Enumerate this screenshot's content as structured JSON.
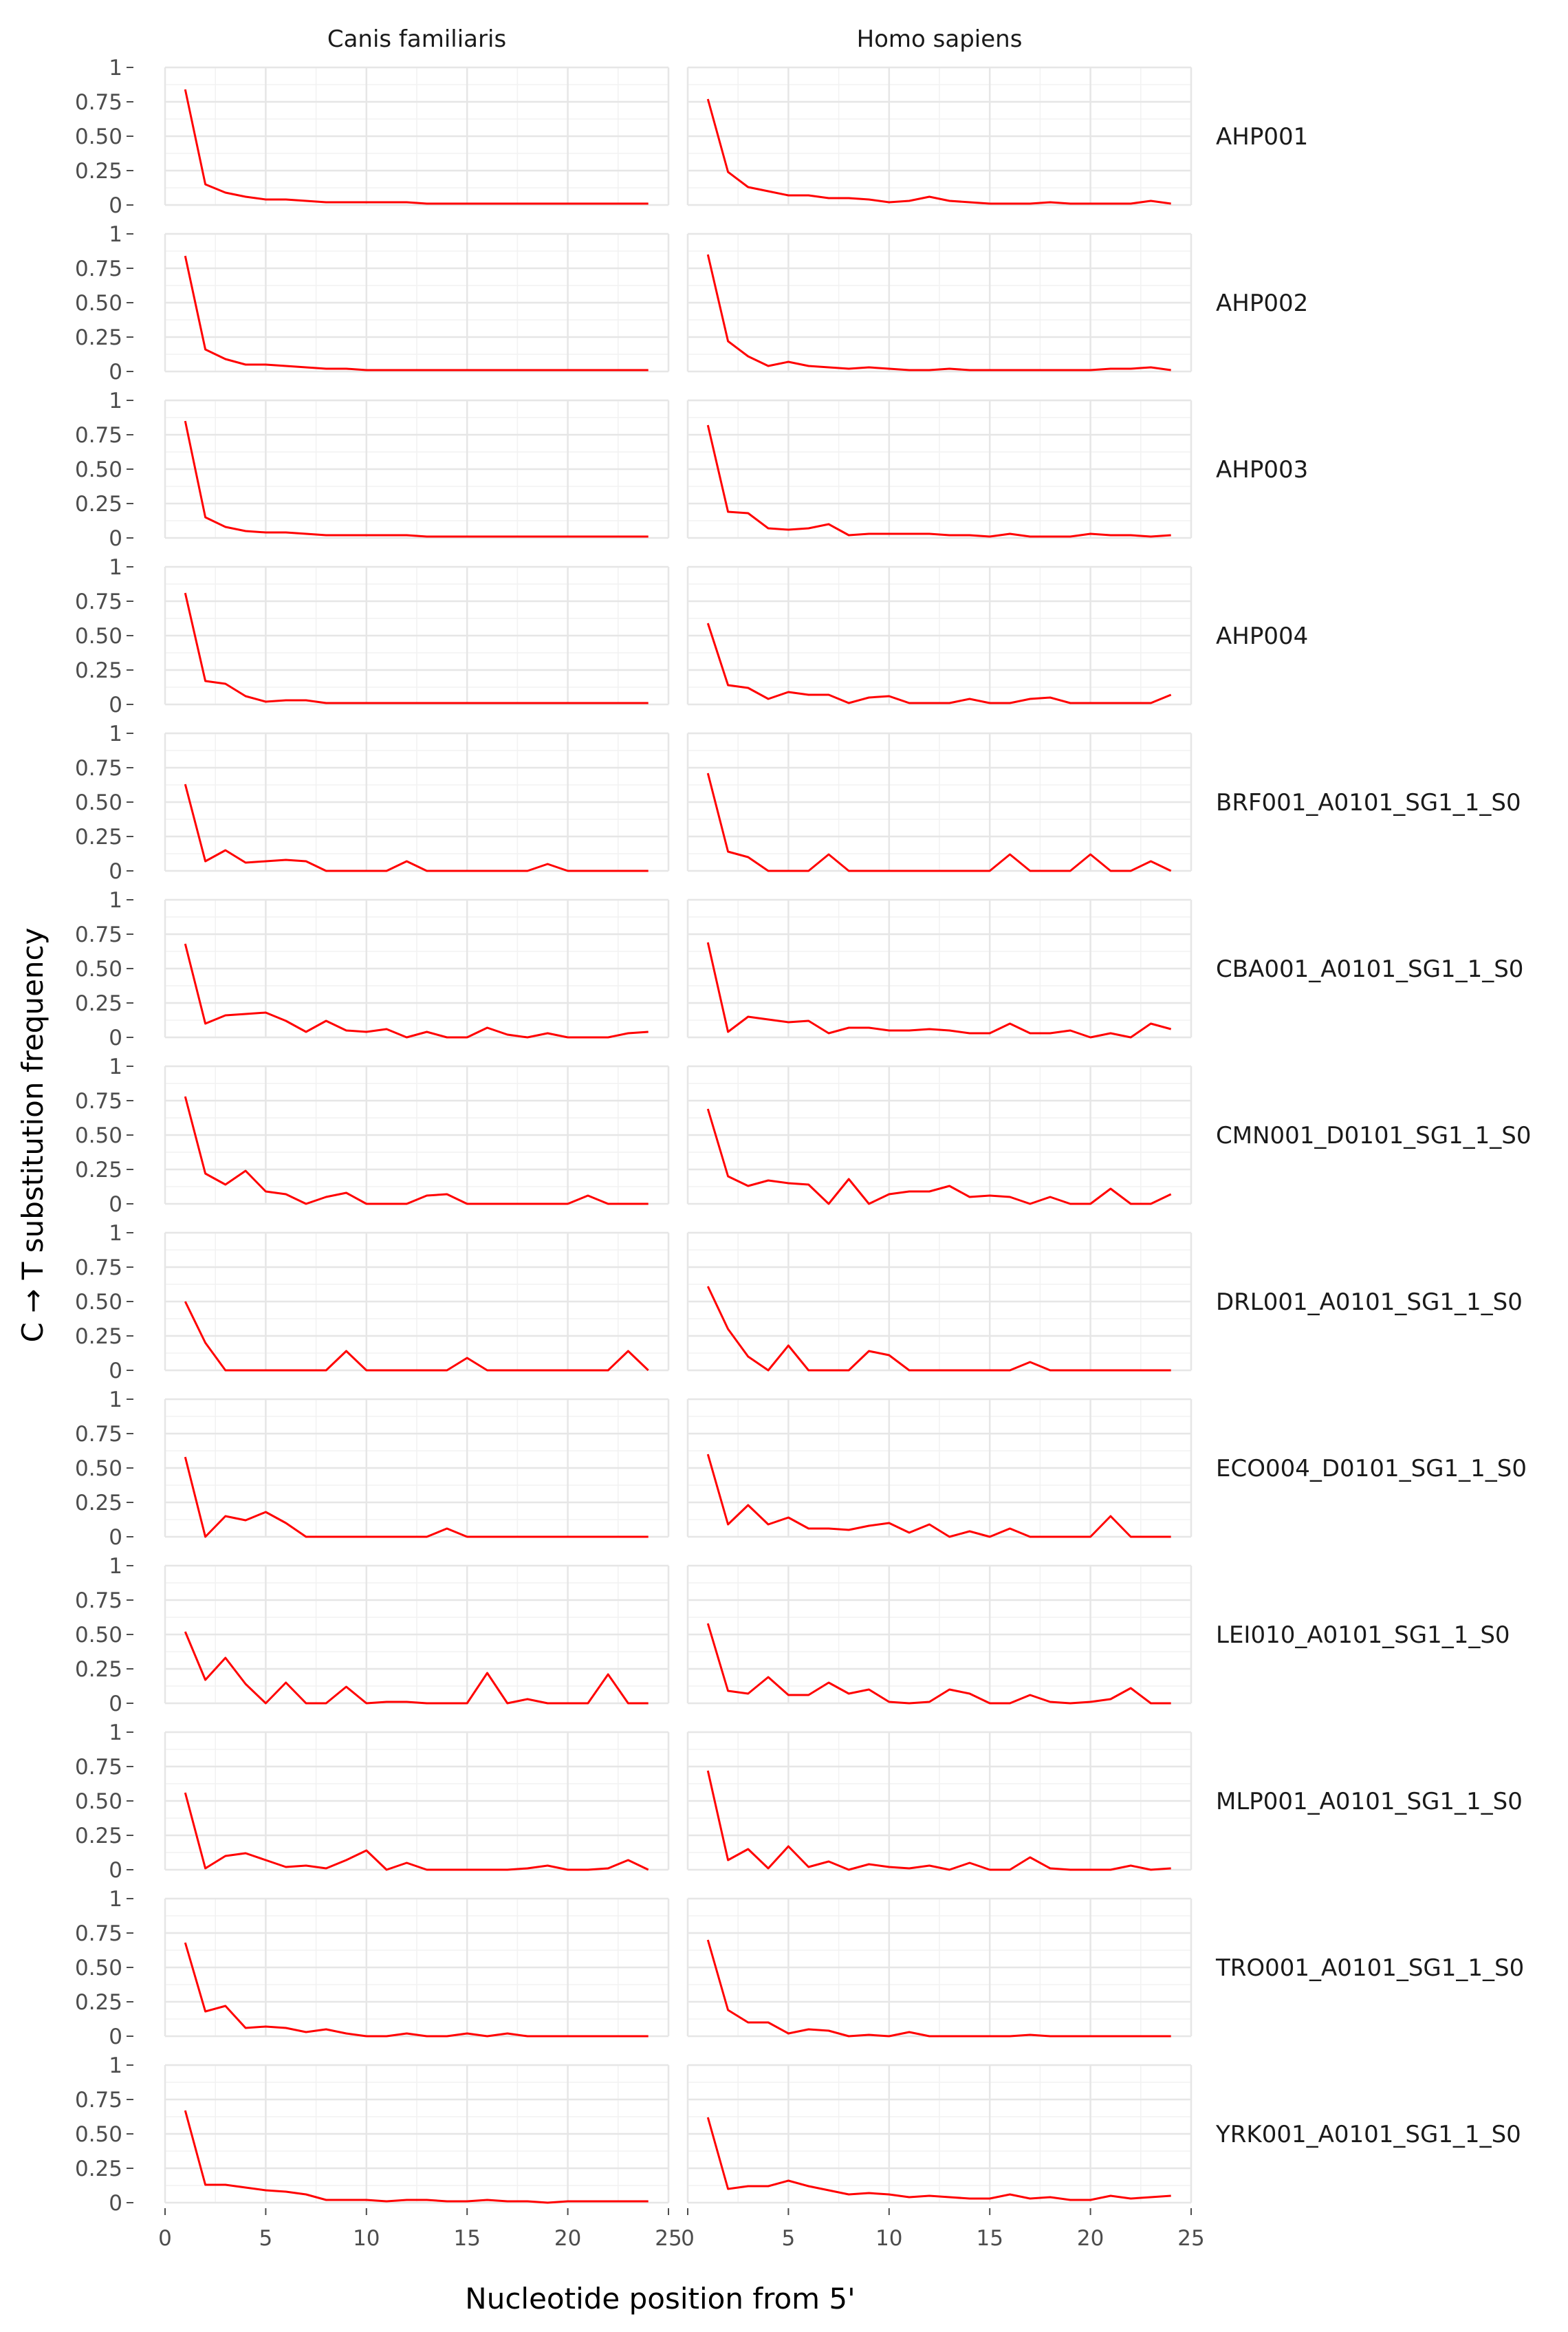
{
  "chart_data": {
    "type": "line",
    "xlabel": "Nucleotide position from 5'",
    "ylabel": "C → T substitution frequency",
    "xlim": [
      0,
      25
    ],
    "ylim": [
      0,
      1
    ],
    "x_ticks": [
      0,
      5,
      10,
      15,
      20,
      25
    ],
    "x_tick_labels": [
      "0",
      "5",
      "10",
      "15",
      "20",
      "25"
    ],
    "y_ticks": [
      0,
      0.25,
      0.5,
      0.75,
      1
    ],
    "y_tick_labels": [
      "0",
      "0.25",
      "0.50",
      "0.75",
      "1"
    ],
    "grid": true,
    "line_color": "#ff0000",
    "grid_color": "#e6e6e6",
    "x": [
      1,
      2,
      3,
      4,
      5,
      6,
      7,
      8,
      9,
      10,
      11,
      12,
      13,
      14,
      15,
      16,
      17,
      18,
      19,
      20,
      21,
      22,
      23,
      24
    ],
    "columns": [
      "Canis familiaris",
      "Homo sapiens"
    ],
    "rows": [
      "AHP001",
      "AHP002",
      "AHP003",
      "AHP004",
      "BRF001_A0101_SG1_1_S0",
      "CBA001_A0101_SG1_1_S0",
      "CMN001_D0101_SG1_1_S0",
      "DRL001_A0101_SG1_1_S0",
      "ECO004_D0101_SG1_1_S0",
      "LEI010_A0101_SG1_1_S0",
      "MLP001_A0101_SG1_1_S0",
      "TRO001_A0101_SG1_1_S0",
      "YRK001_A0101_SG1_1_S0"
    ],
    "panels": [
      {
        "row": "AHP001",
        "column": "Canis familiaris",
        "values": [
          0.84,
          0.15,
          0.09,
          0.06,
          0.04,
          0.04,
          0.03,
          0.02,
          0.02,
          0.02,
          0.02,
          0.02,
          0.01,
          0.01,
          0.01,
          0.01,
          0.01,
          0.01,
          0.01,
          0.01,
          0.01,
          0.01,
          0.01,
          0.01
        ]
      },
      {
        "row": "AHP001",
        "column": "Homo sapiens",
        "values": [
          0.77,
          0.24,
          0.13,
          0.1,
          0.07,
          0.07,
          0.05,
          0.05,
          0.04,
          0.02,
          0.03,
          0.06,
          0.03,
          0.02,
          0.01,
          0.01,
          0.01,
          0.02,
          0.01,
          0.01,
          0.01,
          0.01,
          0.03,
          0.01
        ]
      },
      {
        "row": "AHP002",
        "column": "Canis familiaris",
        "values": [
          0.84,
          0.16,
          0.09,
          0.05,
          0.05,
          0.04,
          0.03,
          0.02,
          0.02,
          0.01,
          0.01,
          0.01,
          0.01,
          0.01,
          0.01,
          0.01,
          0.01,
          0.01,
          0.01,
          0.01,
          0.01,
          0.01,
          0.01,
          0.01
        ]
      },
      {
        "row": "AHP002",
        "column": "Homo sapiens",
        "values": [
          0.85,
          0.22,
          0.11,
          0.04,
          0.07,
          0.04,
          0.03,
          0.02,
          0.03,
          0.02,
          0.01,
          0.01,
          0.02,
          0.01,
          0.01,
          0.01,
          0.01,
          0.01,
          0.01,
          0.01,
          0.02,
          0.02,
          0.03,
          0.01
        ]
      },
      {
        "row": "AHP003",
        "column": "Canis familiaris",
        "values": [
          0.85,
          0.15,
          0.08,
          0.05,
          0.04,
          0.04,
          0.03,
          0.02,
          0.02,
          0.02,
          0.02,
          0.02,
          0.01,
          0.01,
          0.01,
          0.01,
          0.01,
          0.01,
          0.01,
          0.01,
          0.01,
          0.01,
          0.01,
          0.01
        ]
      },
      {
        "row": "AHP003",
        "column": "Homo sapiens",
        "values": [
          0.82,
          0.19,
          0.18,
          0.07,
          0.06,
          0.07,
          0.1,
          0.02,
          0.03,
          0.03,
          0.03,
          0.03,
          0.02,
          0.02,
          0.01,
          0.03,
          0.01,
          0.01,
          0.01,
          0.03,
          0.02,
          0.02,
          0.01,
          0.02
        ]
      },
      {
        "row": "AHP004",
        "column": "Canis familiaris",
        "values": [
          0.81,
          0.17,
          0.15,
          0.06,
          0.02,
          0.03,
          0.03,
          0.01,
          0.01,
          0.01,
          0.01,
          0.01,
          0.01,
          0.01,
          0.01,
          0.01,
          0.01,
          0.01,
          0.01,
          0.01,
          0.01,
          0.01,
          0.01,
          0.01
        ]
      },
      {
        "row": "AHP004",
        "column": "Homo sapiens",
        "values": [
          0.59,
          0.14,
          0.12,
          0.04,
          0.09,
          0.07,
          0.07,
          0.01,
          0.05,
          0.06,
          0.01,
          0.01,
          0.01,
          0.04,
          0.01,
          0.01,
          0.04,
          0.05,
          0.01,
          0.01,
          0.01,
          0.01,
          0.01,
          0.07
        ]
      },
      {
        "row": "BRF001_A0101_SG1_1_S0",
        "column": "Canis familiaris",
        "values": [
          0.63,
          0.07,
          0.15,
          0.06,
          0.07,
          0.08,
          0.07,
          0,
          0,
          0,
          0,
          0.07,
          0,
          0,
          0,
          0,
          0,
          0,
          0.05,
          0,
          0,
          0,
          0,
          0
        ]
      },
      {
        "row": "BRF001_A0101_SG1_1_S0",
        "column": "Homo sapiens",
        "values": [
          0.71,
          0.14,
          0.1,
          0,
          0,
          0,
          0.12,
          0,
          0,
          0,
          0,
          0,
          0,
          0,
          0,
          0.12,
          0,
          0,
          0,
          0.12,
          0,
          0,
          0.07,
          0
        ]
      },
      {
        "row": "CBA001_A0101_SG1_1_S0",
        "column": "Canis familiaris",
        "values": [
          0.68,
          0.1,
          0.16,
          0.17,
          0.18,
          0.12,
          0.04,
          0.12,
          0.05,
          0.04,
          0.06,
          0,
          0.04,
          0,
          0,
          0.07,
          0.02,
          0,
          0.03,
          0,
          0,
          0,
          0.03,
          0.04
        ]
      },
      {
        "row": "CBA001_A0101_SG1_1_S0",
        "column": "Homo sapiens",
        "values": [
          0.69,
          0.04,
          0.15,
          0.13,
          0.11,
          0.12,
          0.03,
          0.07,
          0.07,
          0.05,
          0.05,
          0.06,
          0.05,
          0.03,
          0.03,
          0.1,
          0.03,
          0.03,
          0.05,
          0,
          0.03,
          0,
          0.1,
          0.06
        ]
      },
      {
        "row": "CMN001_D0101_SG1_1_S0",
        "column": "Canis familiaris",
        "values": [
          0.78,
          0.22,
          0.14,
          0.24,
          0.09,
          0.07,
          0,
          0.05,
          0.08,
          0,
          0,
          0,
          0.06,
          0.07,
          0,
          0,
          0,
          0,
          0,
          0,
          0.06,
          0,
          0,
          0
        ]
      },
      {
        "row": "CMN001_D0101_SG1_1_S0",
        "column": "Homo sapiens",
        "values": [
          0.69,
          0.2,
          0.13,
          0.17,
          0.15,
          0.14,
          0,
          0.18,
          0,
          0.07,
          0.09,
          0.09,
          0.13,
          0.05,
          0.06,
          0.05,
          0,
          0.05,
          0,
          0,
          0.11,
          0,
          0,
          0.07
        ]
      },
      {
        "row": "DRL001_A0101_SG1_1_S0",
        "column": "Canis familiaris",
        "values": [
          0.5,
          0.2,
          0,
          0,
          0,
          0,
          0,
          0,
          0.14,
          0,
          0,
          0,
          0,
          0,
          0.09,
          0,
          0,
          0,
          0,
          0,
          0,
          0,
          0.14,
          0
        ]
      },
      {
        "row": "DRL001_A0101_SG1_1_S0",
        "column": "Homo sapiens",
        "values": [
          0.61,
          0.3,
          0.1,
          0,
          0.18,
          0,
          0,
          0,
          0.14,
          0.11,
          0,
          0,
          0,
          0,
          0,
          0,
          0.06,
          0,
          0,
          0,
          0,
          0,
          0,
          0
        ]
      },
      {
        "row": "ECO004_D0101_SG1_1_S0",
        "column": "Canis familiaris",
        "values": [
          0.58,
          0,
          0.15,
          0.12,
          0.18,
          0.1,
          0,
          0,
          0,
          0,
          0,
          0,
          0,
          0.06,
          0,
          0,
          0,
          0,
          0,
          0,
          0,
          0,
          0,
          0
        ]
      },
      {
        "row": "ECO004_D0101_SG1_1_S0",
        "column": "Homo sapiens",
        "values": [
          0.6,
          0.09,
          0.23,
          0.09,
          0.14,
          0.06,
          0.06,
          0.05,
          0.08,
          0.1,
          0.03,
          0.09,
          0,
          0.04,
          0,
          0.06,
          0,
          0,
          0,
          0,
          0.15,
          0,
          0,
          0
        ]
      },
      {
        "row": "LEI010_A0101_SG1_1_S0",
        "column": "Canis familiaris",
        "values": [
          0.52,
          0.17,
          0.33,
          0.14,
          0,
          0.15,
          0,
          0,
          0.12,
          0,
          0.01,
          0.01,
          0,
          0,
          0,
          0.22,
          0,
          0.03,
          0,
          0,
          0,
          0.21,
          0,
          0
        ]
      },
      {
        "row": "LEI010_A0101_SG1_1_S0",
        "column": "Homo sapiens",
        "values": [
          0.58,
          0.09,
          0.07,
          0.19,
          0.06,
          0.06,
          0.15,
          0.07,
          0.1,
          0.01,
          0,
          0.01,
          0.1,
          0.07,
          0,
          0,
          0.06,
          0.01,
          0,
          0.01,
          0.03,
          0.11,
          0,
          0
        ]
      },
      {
        "row": "MLP001_A0101_SG1_1_S0",
        "column": "Canis familiaris",
        "values": [
          0.56,
          0.01,
          0.1,
          0.12,
          0.07,
          0.02,
          0.03,
          0.01,
          0.07,
          0.14,
          0,
          0.05,
          0,
          0,
          0,
          0,
          0,
          0.01,
          0.03,
          0,
          0,
          0.01,
          0.07,
          0
        ]
      },
      {
        "row": "MLP001_A0101_SG1_1_S0",
        "column": "Homo sapiens",
        "values": [
          0.72,
          0.07,
          0.15,
          0.01,
          0.17,
          0.02,
          0.06,
          0,
          0.04,
          0.02,
          0.01,
          0.03,
          0,
          0.05,
          0,
          0,
          0.09,
          0.01,
          0,
          0,
          0,
          0.03,
          0,
          0.01
        ]
      },
      {
        "row": "TRO001_A0101_SG1_1_S0",
        "column": "Canis familiaris",
        "values": [
          0.68,
          0.18,
          0.22,
          0.06,
          0.07,
          0.06,
          0.03,
          0.05,
          0.02,
          0,
          0,
          0.02,
          0,
          0,
          0.02,
          0,
          0.02,
          0,
          0,
          0,
          0,
          0,
          0,
          0
        ]
      },
      {
        "row": "TRO001_A0101_SG1_1_S0",
        "column": "Homo sapiens",
        "values": [
          0.7,
          0.19,
          0.1,
          0.1,
          0.02,
          0.05,
          0.04,
          0,
          0.01,
          0,
          0.03,
          0,
          0,
          0,
          0,
          0,
          0.01,
          0,
          0,
          0,
          0,
          0,
          0,
          0
        ]
      },
      {
        "row": "YRK001_A0101_SG1_1_S0",
        "column": "Canis familiaris",
        "values": [
          0.67,
          0.13,
          0.13,
          0.11,
          0.09,
          0.08,
          0.06,
          0.02,
          0.02,
          0.02,
          0.01,
          0.02,
          0.02,
          0.01,
          0.01,
          0.02,
          0.01,
          0.01,
          0,
          0.01,
          0.01,
          0.01,
          0.01,
          0.01
        ]
      },
      {
        "row": "YRK001_A0101_SG1_1_S0",
        "column": "Homo sapiens",
        "values": [
          0.62,
          0.1,
          0.12,
          0.12,
          0.16,
          0.12,
          0.09,
          0.06,
          0.07,
          0.06,
          0.04,
          0.05,
          0.04,
          0.03,
          0.03,
          0.06,
          0.03,
          0.04,
          0.02,
          0.02,
          0.05,
          0.03,
          0.04,
          0.05
        ]
      }
    ]
  }
}
